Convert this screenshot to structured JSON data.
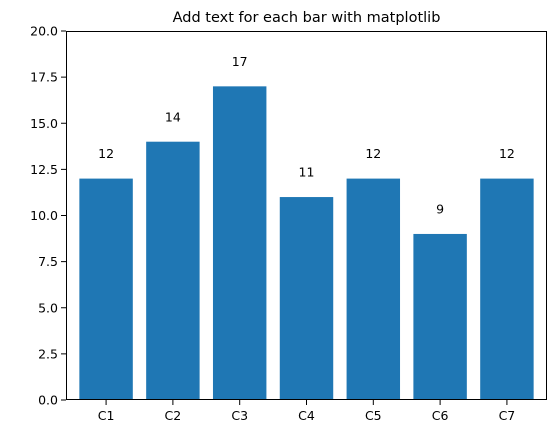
{
  "chart_data": {
    "type": "bar",
    "title": "Add text for each bar with matplotlib",
    "xlabel": "",
    "ylabel": "",
    "categories": [
      "C1",
      "C2",
      "C3",
      "C4",
      "C5",
      "C6",
      "C7"
    ],
    "values": [
      12,
      14,
      17,
      11,
      12,
      9,
      12
    ],
    "data_labels": [
      "12",
      "14",
      "17",
      "11",
      "12",
      "9",
      "12"
    ],
    "ylim": [
      0,
      20
    ],
    "yticks": [
      0,
      2.5,
      5,
      7.5,
      10,
      12.5,
      15,
      17.5,
      20
    ],
    "ytick_labels": [
      "0.0",
      "2.5",
      "5.0",
      "7.5",
      "10.0",
      "12.5",
      "15.0",
      "17.5",
      "20.0"
    ],
    "grid": false,
    "bar_color": "#1f77b4"
  }
}
